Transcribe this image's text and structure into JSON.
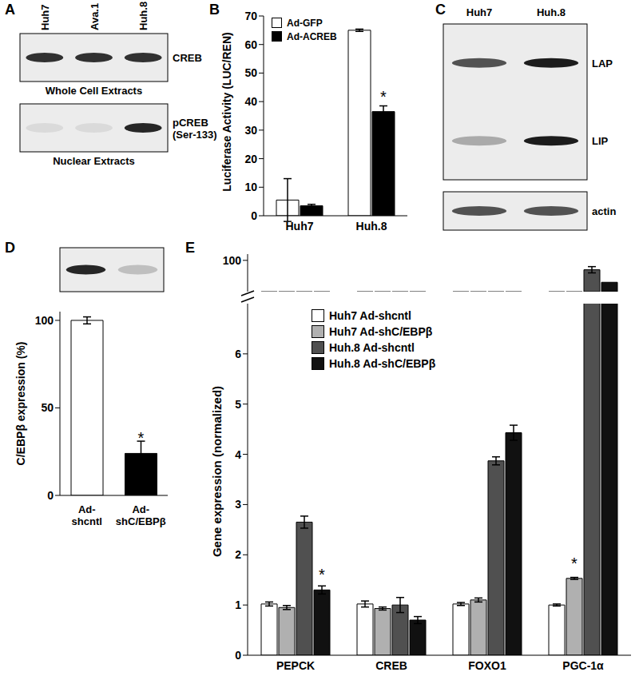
{
  "blots": [
    {
      "panel": "A",
      "lanes": [
        "Huh7",
        "Ava.1",
        "Huh.8"
      ],
      "boxes": [
        {
          "caption": "Whole Cell Extracts",
          "rows": [
            {
              "label": "CREB",
              "bands": [
                0.85,
                0.85,
                0.85
              ]
            }
          ]
        },
        {
          "caption": "Nuclear Extracts",
          "rows": [
            {
              "label": "pCREB (Ser-133)",
              "bands": [
                0.08,
                0.08,
                0.9
              ]
            }
          ]
        }
      ]
    },
    {
      "panel": "C",
      "lanes": [
        "Huh7",
        "Huh.8"
      ],
      "boxes": [
        {
          "rows": [
            {
              "label": "LAP",
              "bands": [
                0.7,
                0.95
              ]
            },
            {
              "label": "LIP",
              "bands": [
                0.3,
                0.95
              ]
            }
          ]
        },
        {
          "rows": [
            {
              "label": "actin",
              "bands": [
                0.7,
                0.7
              ]
            }
          ]
        }
      ]
    },
    {
      "boxes": [
        {
          "rows": [
            {
              "bands": [
                0.9,
                0.2
              ]
            }
          ]
        }
      ]
    }
  ],
  "chart_data": [
    {
      "panel": "B",
      "type": "bar",
      "categories": [
        "Huh7",
        "Huh.8"
      ],
      "series": [
        {
          "name": "Ad-GFP",
          "color": "#ffffff",
          "values": [
            5.5,
            65
          ],
          "errors": [
            7.5,
            0.4
          ]
        },
        {
          "name": "Ad-ACREB",
          "color": "#000000",
          "values": [
            3.5,
            36.5
          ],
          "errors": [
            0.5,
            2
          ]
        }
      ],
      "ylim": [
        0,
        70
      ],
      "yticks": [
        0,
        10,
        20,
        30,
        40,
        50,
        60,
        70
      ],
      "ylabel": "Luciferase Activity (LUC/REN)",
      "legend": "top-left",
      "annotations": [
        {
          "text": "*",
          "category": "Huh.8",
          "series": "Ad-ACREB"
        }
      ]
    },
    {
      "panel": "D",
      "type": "bar",
      "categories": [
        "Ad-shcntl",
        "Ad-shC/EBPβ"
      ],
      "values": [
        100,
        24
      ],
      "errors": [
        2,
        7
      ],
      "colors": [
        "#ffffff",
        "#000000"
      ],
      "ylim": [
        0,
        105
      ],
      "yticks": [
        0,
        50,
        100
      ],
      "ylabel": "C/EBPβ expression (%)",
      "annotations": [
        {
          "text": "*",
          "category": "Ad-shC/EBPβ"
        }
      ]
    },
    {
      "panel": "E",
      "type": "bar",
      "categories": [
        "PEPCK",
        "CREB",
        "FOXO1",
        "PGC-1α"
      ],
      "series": [
        {
          "name": "Huh7 Ad-shcntl",
          "color": "#ffffff",
          "values": [
            1.02,
            1.02,
            1.02,
            1.0
          ],
          "errors": [
            0.04,
            0.06,
            0.03,
            0.02
          ]
        },
        {
          "name": "Huh7 Ad-shC/EBPβ",
          "color": "#b0b0b0",
          "values": [
            0.95,
            0.93,
            1.1,
            1.53
          ],
          "errors": [
            0.04,
            0.03,
            0.04,
            0.02
          ]
        },
        {
          "name": "Huh.8 Ad-shcntl",
          "color": "#505050",
          "values": [
            2.65,
            1.0,
            3.87,
            98.5
          ],
          "errors": [
            0.12,
            0.15,
            0.08,
            0.5
          ]
        },
        {
          "name": "Huh.8 Ad-shC/EBPβ",
          "color": "#111111",
          "values": [
            1.3,
            0.7,
            4.43,
            96.5
          ],
          "errors": [
            0.08,
            0.07,
            0.15,
            0
          ]
        }
      ],
      "segments": [
        {
          "ylim": [
            95,
            101
          ],
          "yticks": [
            100
          ]
        },
        {
          "ylim": [
            0,
            7
          ],
          "yticks": [
            0,
            1,
            2,
            3,
            4,
            5,
            6
          ]
        }
      ],
      "ylabel": "Gene expression (normalized)",
      "legend": "top-left",
      "annotations": [
        {
          "text": "*",
          "category": "PEPCK",
          "series": "Huh.8 Ad-shC/EBPβ"
        },
        {
          "text": "*",
          "category": "PGC-1α",
          "series": "Huh7 Ad-shC/EBPβ"
        }
      ]
    }
  ]
}
